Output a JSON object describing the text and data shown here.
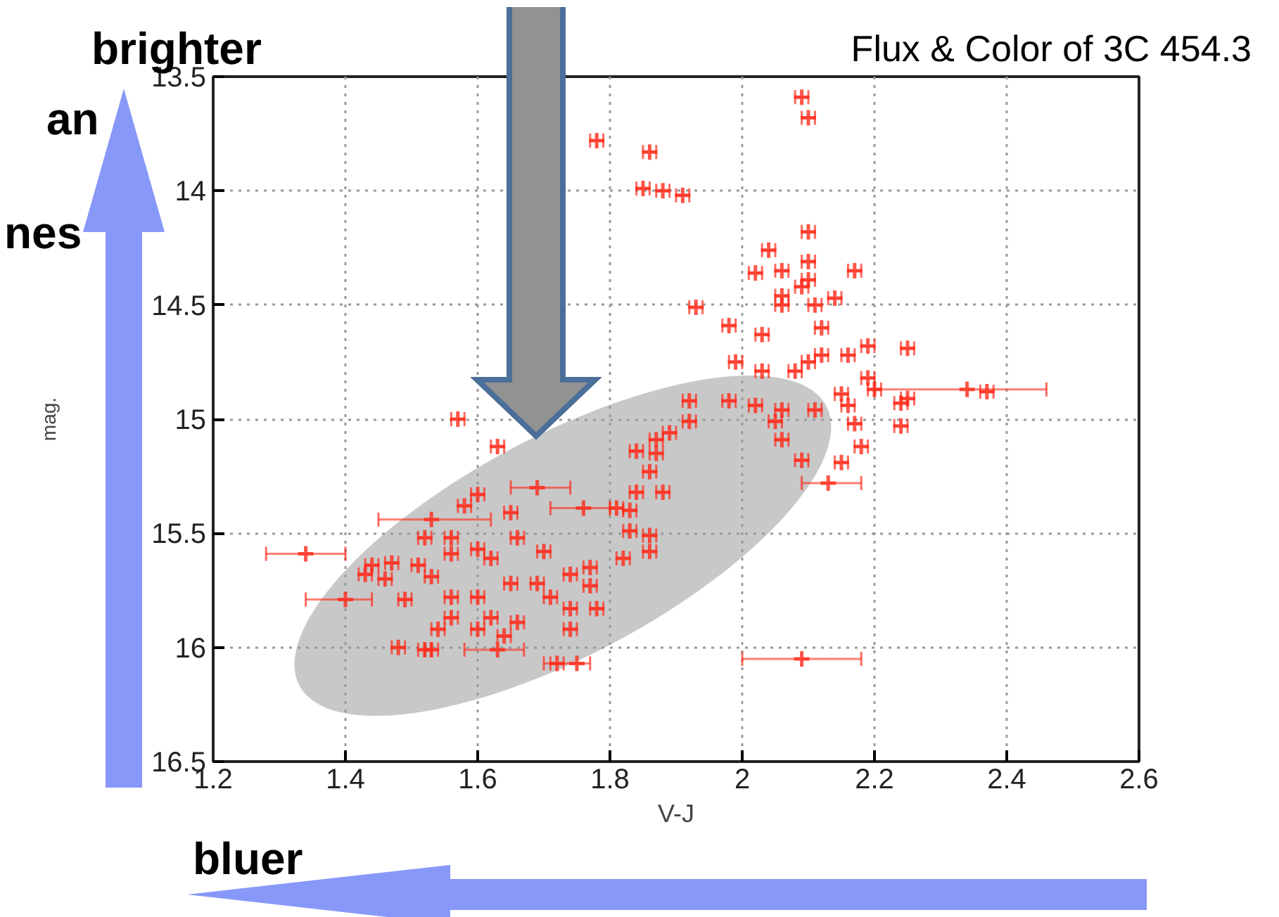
{
  "chart_data": {
    "type": "scatter",
    "title": "Flux & Color of 3C 454.3",
    "xlabel": "V-J",
    "ylabel": "mag.",
    "annotations": [
      "brighter",
      "bluer",
      "an",
      "nes"
    ],
    "xlim": [
      1.2,
      2.6
    ],
    "xticks": [
      1.2,
      1.4,
      1.6,
      1.8,
      2,
      2.2,
      2.4,
      2.6
    ],
    "ylim": [
      16.5,
      13.5
    ],
    "yticks": [
      {
        "value": 13.5,
        "label": "13.5"
      },
      14,
      14.5,
      15,
      15.5,
      16,
      16.5
    ],
    "grid": true,
    "marker": "cross",
    "series": [
      {
        "color": "#ff2a1a",
        "x": [
          2.09,
          2.1,
          1.78,
          1.86,
          1.85,
          1.88,
          1.91,
          2.1,
          2.04,
          2.1,
          2.02,
          2.06,
          2.17,
          2.09,
          2.06,
          2.1,
          2.06,
          2.11,
          2.14,
          1.93,
          1.98,
          2.03,
          2.12,
          2.12,
          1.99,
          2.03,
          2.08,
          2.1,
          2.16,
          2.19,
          2.25,
          2.19,
          2.2,
          2.34,
          2.37,
          2.25,
          2.24,
          2.15,
          2.16,
          1.92,
          1.98,
          2.02,
          2.06,
          2.11,
          1.92,
          2.05,
          2.06,
          2.09,
          2.15,
          2.13,
          2.17,
          2.18,
          2.24,
          1.89,
          1.87,
          1.84,
          1.87,
          1.86,
          1.84,
          1.88,
          1.81,
          1.76,
          1.83,
          1.83,
          1.86,
          1.86,
          1.82,
          1.77,
          1.74,
          1.77,
          1.74,
          1.78,
          1.74,
          2.09,
          1.75,
          1.57,
          1.63,
          1.69,
          1.6,
          1.58,
          1.65,
          1.53,
          1.56,
          1.52,
          1.66,
          1.34,
          1.56,
          1.6,
          1.62,
          1.7,
          1.47,
          1.44,
          1.51,
          1.43,
          1.46,
          1.53,
          1.65,
          1.69,
          1.4,
          1.49,
          1.56,
          1.6,
          1.71,
          1.56,
          1.6,
          1.62,
          1.66,
          1.54,
          1.64,
          1.48,
          1.52,
          1.53,
          1.63,
          1.72
        ],
        "values": [
          13.59,
          13.68,
          13.78,
          13.83,
          13.99,
          14.0,
          14.02,
          14.18,
          14.26,
          14.31,
          14.36,
          14.35,
          14.35,
          14.42,
          14.46,
          14.39,
          14.5,
          14.5,
          14.47,
          14.51,
          14.59,
          14.63,
          14.6,
          14.72,
          14.75,
          14.79,
          14.79,
          14.75,
          14.72,
          14.68,
          14.69,
          14.82,
          14.87,
          14.87,
          14.88,
          14.91,
          14.93,
          14.89,
          14.94,
          14.92,
          14.92,
          14.94,
          14.96,
          14.96,
          15.01,
          15.01,
          15.09,
          15.18,
          15.19,
          15.28,
          15.02,
          15.12,
          15.03,
          15.06,
          15.09,
          15.14,
          15.15,
          15.23,
          15.32,
          15.32,
          15.39,
          15.39,
          15.4,
          15.49,
          15.51,
          15.58,
          15.61,
          15.65,
          15.68,
          15.73,
          15.83,
          15.83,
          15.92,
          16.05,
          16.07,
          15.0,
          15.12,
          15.3,
          15.33,
          15.38,
          15.41,
          15.44,
          15.52,
          15.52,
          15.52,
          15.59,
          15.59,
          15.57,
          15.61,
          15.58,
          15.63,
          15.64,
          15.64,
          15.68,
          15.7,
          15.69,
          15.72,
          15.72,
          15.79,
          15.79,
          15.78,
          15.78,
          15.78,
          15.87,
          15.92,
          15.87,
          15.89,
          15.92,
          15.95,
          16.0,
          16.01,
          16.01,
          16.01,
          16.07
        ],
        "xerrors": [
          0.01,
          0.01,
          0.01,
          0.01,
          0.01,
          0.01,
          0.01,
          0.01,
          0.01,
          0.01,
          0.01,
          0.01,
          0.01,
          0.01,
          0.01,
          0.01,
          0.01,
          0.01,
          0.01,
          0.01,
          0.01,
          0.01,
          0.01,
          0.01,
          0.01,
          0.01,
          0.01,
          0.01,
          0.01,
          0.01,
          0.01,
          0.01,
          0.01,
          [
            2.2,
            2.46
          ],
          0.01,
          0.01,
          0.01,
          0.01,
          0.01,
          0.01,
          0.01,
          0.01,
          0.01,
          0.01,
          0.01,
          0.01,
          0.01,
          0.01,
          0.01,
          [
            2.09,
            2.18
          ],
          0.01,
          0.01,
          0.01,
          0.01,
          0.01,
          0.01,
          0.01,
          0.01,
          0.01,
          0.01,
          0.01,
          [
            1.71,
            1.8
          ],
          0.01,
          0.01,
          0.01,
          0.01,
          0.01,
          0.01,
          0.01,
          0.01,
          0.01,
          0.01,
          0.01,
          [
            2.0,
            2.18
          ],
          [
            1.7,
            1.77
          ],
          0.01,
          0.01,
          [
            1.65,
            1.74
          ],
          0.01,
          0.01,
          0.01,
          [
            1.45,
            1.62
          ],
          0.01,
          0.01,
          0.01,
          [
            1.28,
            1.4
          ],
          0.01,
          0.01,
          0.01,
          0.01,
          0.01,
          0.01,
          0.01,
          0.01,
          0.01,
          0.01,
          0.01,
          0.01,
          [
            1.34,
            1.44
          ],
          0.01,
          0.01,
          0.01,
          0.01,
          0.01,
          0.01,
          0.01,
          0.01,
          0.01,
          0.01,
          0.01,
          0.01,
          0.01,
          [
            1.58,
            1.67
          ],
          0.01
        ]
      }
    ]
  }
}
